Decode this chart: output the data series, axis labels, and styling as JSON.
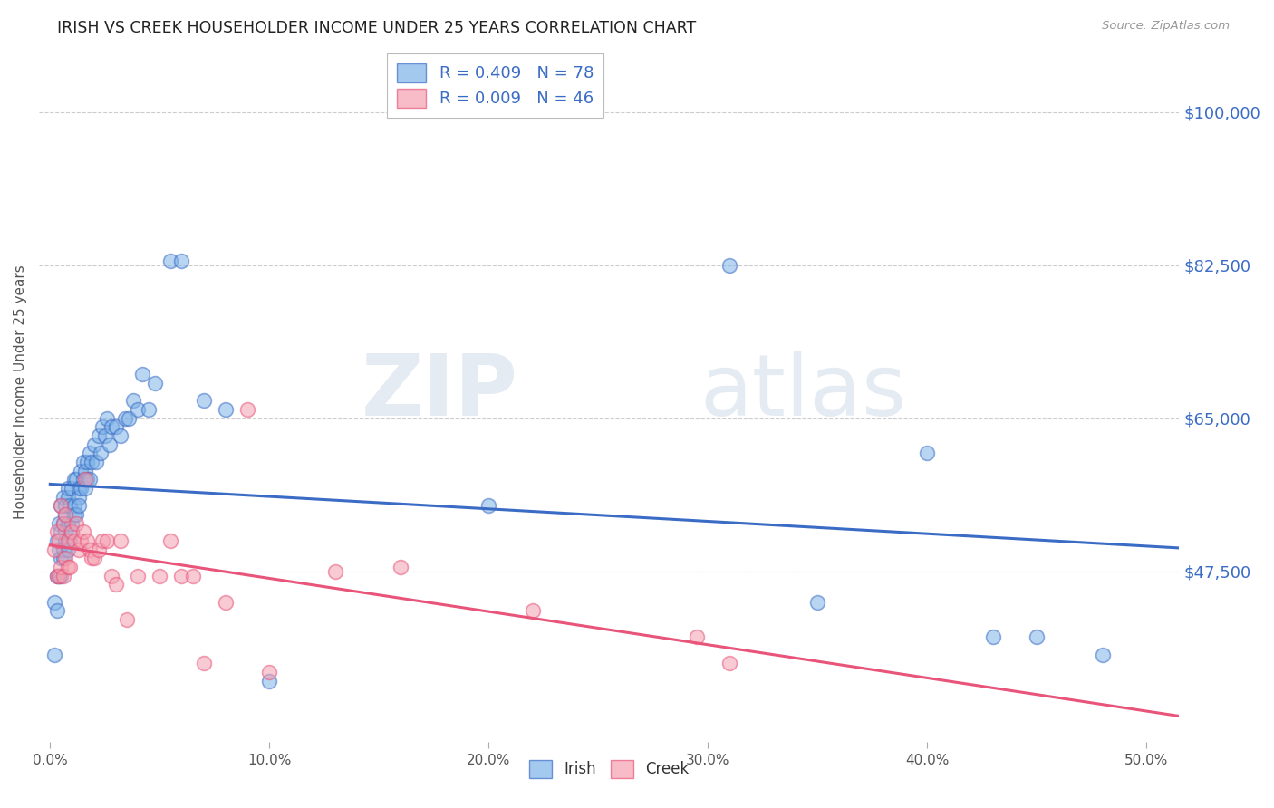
{
  "title": "IRISH VS CREEK HOUSEHOLDER INCOME UNDER 25 YEARS CORRELATION CHART",
  "source": "Source: ZipAtlas.com",
  "ylabel": "Householder Income Under 25 years",
  "xlabel_ticks": [
    "0.0%",
    "10.0%",
    "20.0%",
    "30.0%",
    "40.0%",
    "50.0%"
  ],
  "xlabel_tick_vals": [
    0.0,
    0.1,
    0.2,
    0.3,
    0.4,
    0.5
  ],
  "ytick_labels": [
    "$100,000",
    "$82,500",
    "$65,000",
    "$47,500"
  ],
  "ytick_vals": [
    100000,
    82500,
    65000,
    47500
  ],
  "ymin": 28000,
  "ymax": 108000,
  "xmin": -0.005,
  "xmax": 0.515,
  "irish_R": 0.409,
  "irish_N": 78,
  "creek_R": 0.009,
  "creek_N": 46,
  "irish_color": "#7EB3E8",
  "creek_color": "#F4A0B0",
  "irish_line_color": "#3B6CC5",
  "creek_line_color": "#E8547A",
  "watermark_zip": "ZIP",
  "watermark_atlas": "atlas",
  "background_color": "#FFFFFF",
  "irish_x": [
    0.002,
    0.002,
    0.003,
    0.003,
    0.003,
    0.004,
    0.004,
    0.004,
    0.005,
    0.005,
    0.005,
    0.005,
    0.006,
    0.006,
    0.006,
    0.006,
    0.007,
    0.007,
    0.007,
    0.007,
    0.008,
    0.008,
    0.008,
    0.008,
    0.009,
    0.009,
    0.01,
    0.01,
    0.01,
    0.011,
    0.011,
    0.011,
    0.012,
    0.012,
    0.013,
    0.013,
    0.013,
    0.014,
    0.014,
    0.015,
    0.015,
    0.016,
    0.016,
    0.017,
    0.017,
    0.018,
    0.018,
    0.019,
    0.02,
    0.021,
    0.022,
    0.023,
    0.024,
    0.025,
    0.026,
    0.027,
    0.028,
    0.03,
    0.032,
    0.034,
    0.036,
    0.038,
    0.04,
    0.042,
    0.045,
    0.048,
    0.055,
    0.06,
    0.07,
    0.08,
    0.1,
    0.2,
    0.31,
    0.35,
    0.4,
    0.43,
    0.45,
    0.48
  ],
  "irish_y": [
    44000,
    38000,
    51000,
    47000,
    43000,
    50000,
    53000,
    47000,
    52000,
    49000,
    47000,
    55000,
    50000,
    53000,
    49000,
    56000,
    54000,
    51000,
    52000,
    55000,
    56000,
    53000,
    50000,
    57000,
    55000,
    51000,
    57000,
    53000,
    52000,
    58000,
    55000,
    54000,
    58000,
    54000,
    57000,
    56000,
    55000,
    59000,
    57000,
    60000,
    58000,
    59000,
    57000,
    60000,
    58000,
    61000,
    58000,
    60000,
    62000,
    60000,
    63000,
    61000,
    64000,
    63000,
    65000,
    62000,
    64000,
    64000,
    63000,
    65000,
    65000,
    67000,
    66000,
    70000,
    66000,
    69000,
    83000,
    83000,
    67000,
    66000,
    35000,
    55000,
    82500,
    44000,
    61000,
    40000,
    40000,
    38000
  ],
  "creek_x": [
    0.002,
    0.003,
    0.003,
    0.004,
    0.004,
    0.005,
    0.005,
    0.006,
    0.006,
    0.007,
    0.007,
    0.008,
    0.008,
    0.009,
    0.01,
    0.011,
    0.012,
    0.013,
    0.014,
    0.015,
    0.016,
    0.017,
    0.018,
    0.019,
    0.02,
    0.022,
    0.024,
    0.026,
    0.028,
    0.03,
    0.032,
    0.035,
    0.04,
    0.05,
    0.055,
    0.06,
    0.065,
    0.07,
    0.08,
    0.09,
    0.1,
    0.13,
    0.16,
    0.22,
    0.295,
    0.31
  ],
  "creek_y": [
    50000,
    52000,
    47000,
    51000,
    47000,
    55000,
    48000,
    53000,
    47000,
    54000,
    49000,
    51000,
    48000,
    48000,
    52000,
    51000,
    53000,
    50000,
    51000,
    52000,
    58000,
    51000,
    50000,
    49000,
    49000,
    50000,
    51000,
    51000,
    47000,
    46000,
    51000,
    42000,
    47000,
    47000,
    51000,
    47000,
    47000,
    37000,
    44000,
    66000,
    36000,
    47500,
    48000,
    43000,
    40000,
    37000
  ]
}
